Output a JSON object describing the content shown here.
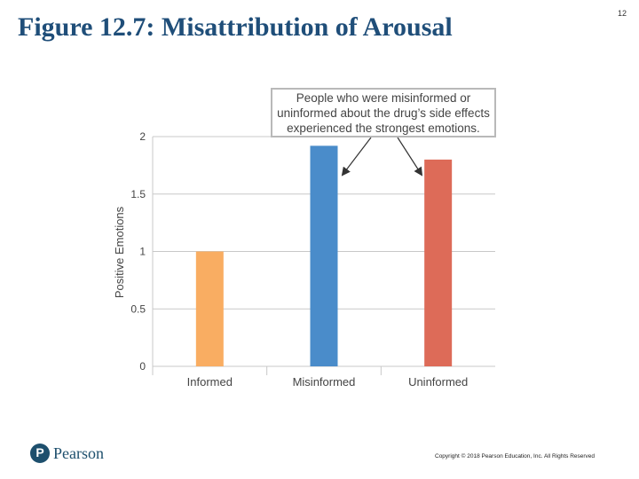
{
  "slide": {
    "title": "Figure 12.7: Misattribution of Arousal",
    "page_number": "12",
    "callout": "People who were misinformed or\nuninformed about the drug’s side effects\nexperienced the strongest emotions.",
    "publisher": "Pearson",
    "copyright": "Copyright © 2018 Pearson Education, Inc. All Rights Reserved"
  },
  "chart_data": {
    "type": "bar",
    "categories": [
      "Informed",
      "Misinformed",
      "Uninformed"
    ],
    "values": [
      1.0,
      1.92,
      1.8
    ],
    "colors": [
      "#f9ad62",
      "#4a8cca",
      "#dd6b58"
    ],
    "ylabel": "Positive Emotions",
    "xlabel": "",
    "ylim": [
      0,
      2
    ],
    "yticks": [
      "0",
      "0.5",
      "1",
      "1.5",
      "2"
    ],
    "grid": true
  }
}
